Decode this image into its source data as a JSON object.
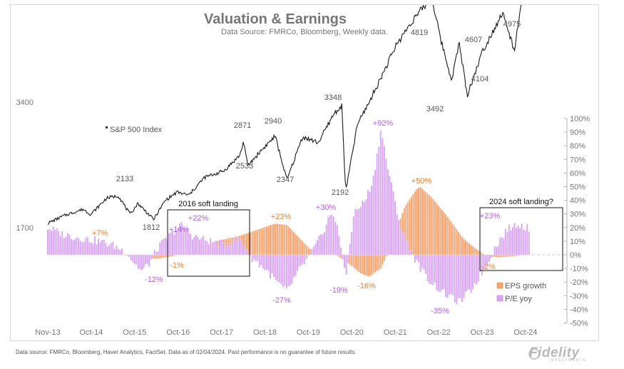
{
  "chart_data": {
    "type": "line+bar",
    "title": "Valuation & Earnings",
    "subtitle": "Data Source: FMRCo, Bloomberg,  Weekly data.",
    "x_ticks": [
      "Nov-13",
      "Oct-14",
      "Oct-15",
      "Oct-16",
      "Oct-17",
      "Oct-18",
      "Oct-19",
      "Oct-20",
      "Oct-21",
      "Oct-22",
      "Oct-23",
      "Oct-24"
    ],
    "left_axis": {
      "ticks": [
        "3400",
        "1700"
      ]
    },
    "right_axis": {
      "ticks": [
        "100%",
        "90%",
        "80%",
        "70%",
        "60%",
        "50%",
        "40%",
        "30%",
        "20%",
        "10%",
        "0%",
        "-10%",
        "-20%",
        "-30%",
        "-40%",
        "-50%"
      ]
    },
    "series": [
      {
        "name": "S&P 500 Index",
        "kind": "line",
        "color": "#1a1a1a",
        "points": [
          [
            "2013-11",
            1760
          ],
          [
            "2014-03",
            1860
          ],
          [
            "2014-08",
            1950
          ],
          [
            "2014-10",
            1880
          ],
          [
            "2015-02",
            2100
          ],
          [
            "2015-05",
            2133
          ],
          [
            "2015-08",
            1880
          ],
          [
            "2015-10",
            2030
          ],
          [
            "2016-02",
            1812
          ],
          [
            "2016-05",
            2070
          ],
          [
            "2016-08",
            2180
          ],
          [
            "2016-11",
            2140
          ],
          [
            "2017-03",
            2380
          ],
          [
            "2017-08",
            2470
          ],
          [
            "2017-12",
            2680
          ],
          [
            "2018-01",
            2871
          ],
          [
            "2018-02",
            2533
          ],
          [
            "2018-05",
            2720
          ],
          [
            "2018-09",
            2940
          ],
          [
            "2018-12",
            2347
          ],
          [
            "2019-04",
            2930
          ],
          [
            "2019-08",
            2850
          ],
          [
            "2019-12",
            3240
          ],
          [
            "2020-02",
            3348
          ],
          [
            "2020-03",
            2192
          ],
          [
            "2020-06",
            3100
          ],
          [
            "2020-09",
            3400
          ],
          [
            "2020-12",
            3730
          ],
          [
            "2021-04",
            4180
          ],
          [
            "2021-08",
            4500
          ],
          [
            "2022-01",
            4819
          ],
          [
            "2022-03",
            4300
          ],
          [
            "2022-06",
            3700
          ],
          [
            "2022-08",
            4200
          ],
          [
            "2022-10",
            3492
          ],
          [
            "2023-02",
            4100
          ],
          [
            "2023-07",
            4607
          ],
          [
            "2023-10",
            4104
          ],
          [
            "2023-12",
            4750
          ],
          [
            "2024-02",
            4975
          ]
        ],
        "labels": [
          "2133",
          "1812",
          "2871",
          "2533",
          "2940",
          "2347",
          "3348",
          "2192",
          "4819",
          "3492",
          "4607",
          "4104",
          "4975"
        ]
      },
      {
        "name": "EPS growth",
        "kind": "bar",
        "color": "#f7a36d",
        "points": [
          [
            "2013-11",
            5
          ],
          [
            "2014-06",
            6
          ],
          [
            "2014-10",
            7
          ],
          [
            "2015-03",
            2
          ],
          [
            "2015-09",
            -2
          ],
          [
            "2016-03",
            -3
          ],
          [
            "2016-07",
            -1
          ],
          [
            "2017-01",
            5
          ],
          [
            "2017-06",
            10
          ],
          [
            "2017-12",
            14
          ],
          [
            "2018-06",
            20
          ],
          [
            "2018-09",
            23
          ],
          [
            "2018-12",
            22
          ],
          [
            "2019-03",
            13
          ],
          [
            "2019-06",
            4
          ],
          [
            "2019-09",
            0
          ],
          [
            "2019-12",
            1
          ],
          [
            "2020-04",
            -7
          ],
          [
            "2020-07",
            -14
          ],
          [
            "2020-09",
            -16
          ],
          [
            "2020-12",
            -10
          ],
          [
            "2021-03",
            10
          ],
          [
            "2021-06",
            35
          ],
          [
            "2021-09",
            48
          ],
          [
            "2021-10",
            50
          ],
          [
            "2022-01",
            42
          ],
          [
            "2022-05",
            28
          ],
          [
            "2022-09",
            12
          ],
          [
            "2022-12",
            5
          ],
          [
            "2023-03",
            -1
          ],
          [
            "2023-06",
            -2
          ],
          [
            "2023-10",
            -1
          ],
          [
            "2024-01",
            0
          ]
        ],
        "labels": [
          "+7%",
          "-1%",
          "+23%",
          "-16%",
          "+50%",
          "-2%"
        ]
      },
      {
        "name": "P/E yoy",
        "kind": "bar",
        "color": "#d9a6f5",
        "points": [
          [
            "2013-11",
            20
          ],
          [
            "2014-03",
            15
          ],
          [
            "2014-08",
            12
          ],
          [
            "2014-12",
            10
          ],
          [
            "2015-03",
            8
          ],
          [
            "2015-07",
            2
          ],
          [
            "2015-09",
            -6
          ],
          [
            "2015-11",
            -12
          ],
          [
            "2016-01",
            -6
          ],
          [
            "2016-03",
            5
          ],
          [
            "2016-06",
            14
          ],
          [
            "2016-09",
            22
          ],
          [
            "2016-12",
            14
          ],
          [
            "2017-04",
            10
          ],
          [
            "2017-08",
            8
          ],
          [
            "2017-12",
            12
          ],
          [
            "2018-03",
            -2
          ],
          [
            "2018-07",
            -12
          ],
          [
            "2018-10",
            -22
          ],
          [
            "2018-12",
            -27
          ],
          [
            "2019-03",
            -12
          ],
          [
            "2019-06",
            0
          ],
          [
            "2019-09",
            15
          ],
          [
            "2019-11",
            30
          ],
          [
            "2020-01",
            22
          ],
          [
            "2020-03",
            -19
          ],
          [
            "2020-05",
            30
          ],
          [
            "2020-08",
            40
          ],
          [
            "2020-10",
            55
          ],
          [
            "2020-12",
            92
          ],
          [
            "2021-02",
            60
          ],
          [
            "2021-05",
            20
          ],
          [
            "2021-09",
            -5
          ],
          [
            "2021-12",
            -18
          ],
          [
            "2022-04",
            -28
          ],
          [
            "2022-08",
            -35
          ],
          [
            "2022-11",
            -26
          ],
          [
            "2023-02",
            -12
          ],
          [
            "2023-05",
            5
          ],
          [
            "2023-08",
            18
          ],
          [
            "2023-11",
            23
          ],
          [
            "2024-01",
            20
          ]
        ],
        "labels": [
          "-12%",
          "+14%",
          "+22%",
          "-27%",
          "+30%",
          "-19%",
          "+92%",
          "-35%",
          "+23%"
        ]
      }
    ],
    "legend_position": "bottom-right",
    "annotations": {
      "sp500_label": "S&P 500 Index",
      "box_2016": "2016 soft landing",
      "box_2024": "2024 soft landing?"
    },
    "colors": {
      "sp500": "#1a1a1a",
      "eps": "#f7a36d",
      "pe": "#d9a6f5",
      "pe_label": "#b05ee6",
      "eps_label": "#e67f2e",
      "axis_text": "#767676"
    }
  },
  "footer": "Data source: FMRCo, Bloomberg, Haver Analytics, FactSet. Data as of 02/04/2024. Past performance is no guarantee of future results.",
  "brand": "Fidelity",
  "brand_sub": "INVESTMENTS"
}
